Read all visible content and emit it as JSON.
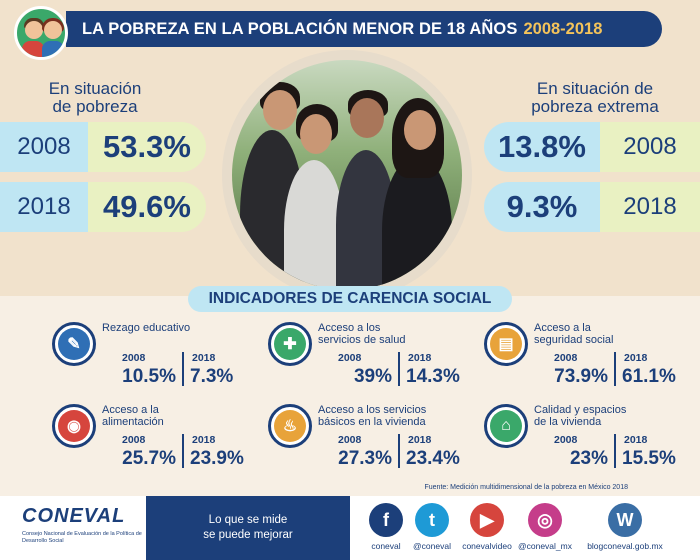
{
  "header": {
    "title": "LA POBREZA EN LA POBLACIÓN MENOR DE 18 AÑOS",
    "years": "2008-2018"
  },
  "poverty": {
    "heading_line1": "En situación",
    "heading_line2": "de pobreza",
    "rows": [
      {
        "year": "2008",
        "value": "53.3%"
      },
      {
        "year": "2018",
        "value": "49.6%"
      }
    ]
  },
  "extreme": {
    "heading_line1": "En situación de",
    "heading_line2": "pobreza extrema",
    "rows": [
      {
        "year": "2008",
        "value": "13.8%"
      },
      {
        "year": "2018",
        "value": "9.3%"
      }
    ]
  },
  "indicators_title": "INDICADORES DE CARENCIA SOCIAL",
  "indicators": [
    {
      "name1": "Rezago educativo",
      "name2": "",
      "y1": "2008",
      "v1": "10.5%",
      "y2": "2018",
      "v2": "7.3%",
      "color": "#2f6fb5",
      "icon": "education-icon"
    },
    {
      "name1": "Acceso a los",
      "name2": "servicios de salud",
      "y1": "2008",
      "v1": "39%",
      "y2": "2018",
      "v2": "14.3%",
      "color": "#3aa86a",
      "icon": "health-icon"
    },
    {
      "name1": "Acceso a la",
      "name2": "seguridad social",
      "y1": "2008",
      "v1": "73.9%",
      "y2": "2018",
      "v2": "61.1%",
      "color": "#e8a33a",
      "icon": "social-security-icon"
    },
    {
      "name1": "Acceso a la",
      "name2": "alimentación",
      "y1": "2008",
      "v1": "25.7%",
      "y2": "2018",
      "v2": "23.9%",
      "color": "#d6453d",
      "icon": "food-icon"
    },
    {
      "name1": "Acceso a los servicios",
      "name2": "básicos en la vivienda",
      "y1": "2008",
      "v1": "27.3%",
      "y2": "2018",
      "v2": "23.4%",
      "color": "#e8a33a",
      "icon": "water-tap-icon"
    },
    {
      "name1": "Calidad y espacios",
      "name2": "de la vivienda",
      "y1": "2008",
      "v1": "23%",
      "y2": "2018",
      "v2": "15.5%",
      "color": "#3aa86a",
      "icon": "house-icon"
    }
  ],
  "source": "Fuente: Medición multidimensional de la pobreza en México 2018",
  "footer": {
    "logo": "CONEVAL",
    "logo_sub": "Consejo Nacional de Evaluación de la Política de Desarrollo Social",
    "slogan1": "Lo que se mide",
    "slogan2": "se puede mejorar",
    "social": [
      {
        "label": "coneval",
        "icon": "facebook-icon",
        "color": "#1c3f7a"
      },
      {
        "label": "@coneval",
        "icon": "twitter-icon",
        "color": "#1e9ad6"
      },
      {
        "label": "conevalvideo",
        "icon": "youtube-icon",
        "color": "#d6453d"
      },
      {
        "label": "@coneval_mx",
        "icon": "instagram-icon",
        "color": "#c53d8a"
      },
      {
        "label": "blogconeval.gob.mx",
        "icon": "wordpress-icon",
        "color": "#3a6ea5"
      }
    ]
  }
}
